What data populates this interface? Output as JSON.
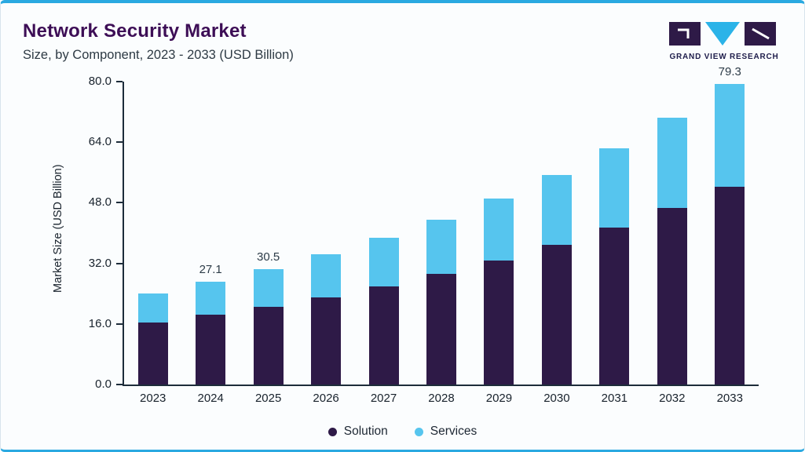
{
  "header": {
    "title": "Network Security Market",
    "subtitle": "Size, by Component, 2023 - 2033 (USD Billion)",
    "logo_text": "GRAND VIEW RESEARCH"
  },
  "colors": {
    "accent_blue": "#2aa9e1",
    "title_purple": "#3d0e56",
    "solution_purple": "#2e1a47",
    "services_cyan": "#56c5ee",
    "axis": "#1d2c3a",
    "card_background": "#fbfdfe"
  },
  "chart_data": {
    "type": "bar",
    "stacked": true,
    "title": "Network Security Market",
    "subtitle": "Size, by Component, 2023 - 2033 (USD Billion)",
    "categories": [
      "2023",
      "2024",
      "2025",
      "2026",
      "2027",
      "2028",
      "2029",
      "2030",
      "2031",
      "2032",
      "2033"
    ],
    "series": [
      {
        "name": "Solution",
        "color": "#2e1a47",
        "values": [
          16.4,
          18.4,
          20.6,
          23.1,
          26.0,
          29.2,
          32.8,
          36.9,
          41.5,
          46.6,
          52.3
        ]
      },
      {
        "name": "Services",
        "color": "#56c5ee",
        "values": [
          7.7,
          8.7,
          9.9,
          11.3,
          12.7,
          14.4,
          16.4,
          18.5,
          20.9,
          23.8,
          27.0
        ]
      }
    ],
    "totals": [
      24.1,
      27.1,
      30.5,
      34.4,
      38.7,
      43.6,
      49.2,
      55.4,
      62.4,
      70.4,
      79.3
    ],
    "bar_value_labels": [
      "",
      "27.1",
      "30.5",
      "",
      "",
      "",
      "",
      "",
      "",
      "",
      "79.3"
    ],
    "ylabel": "Market Size (USD Billion)",
    "xlabel": "",
    "ylim": [
      0,
      80
    ],
    "yticks": [
      0,
      16,
      32,
      48,
      64,
      80
    ],
    "ytick_labels": [
      "0.0",
      "16.0",
      "32.0",
      "48.0",
      "64.0",
      "80.0"
    ],
    "grid": false,
    "legend_position": "bottom"
  }
}
